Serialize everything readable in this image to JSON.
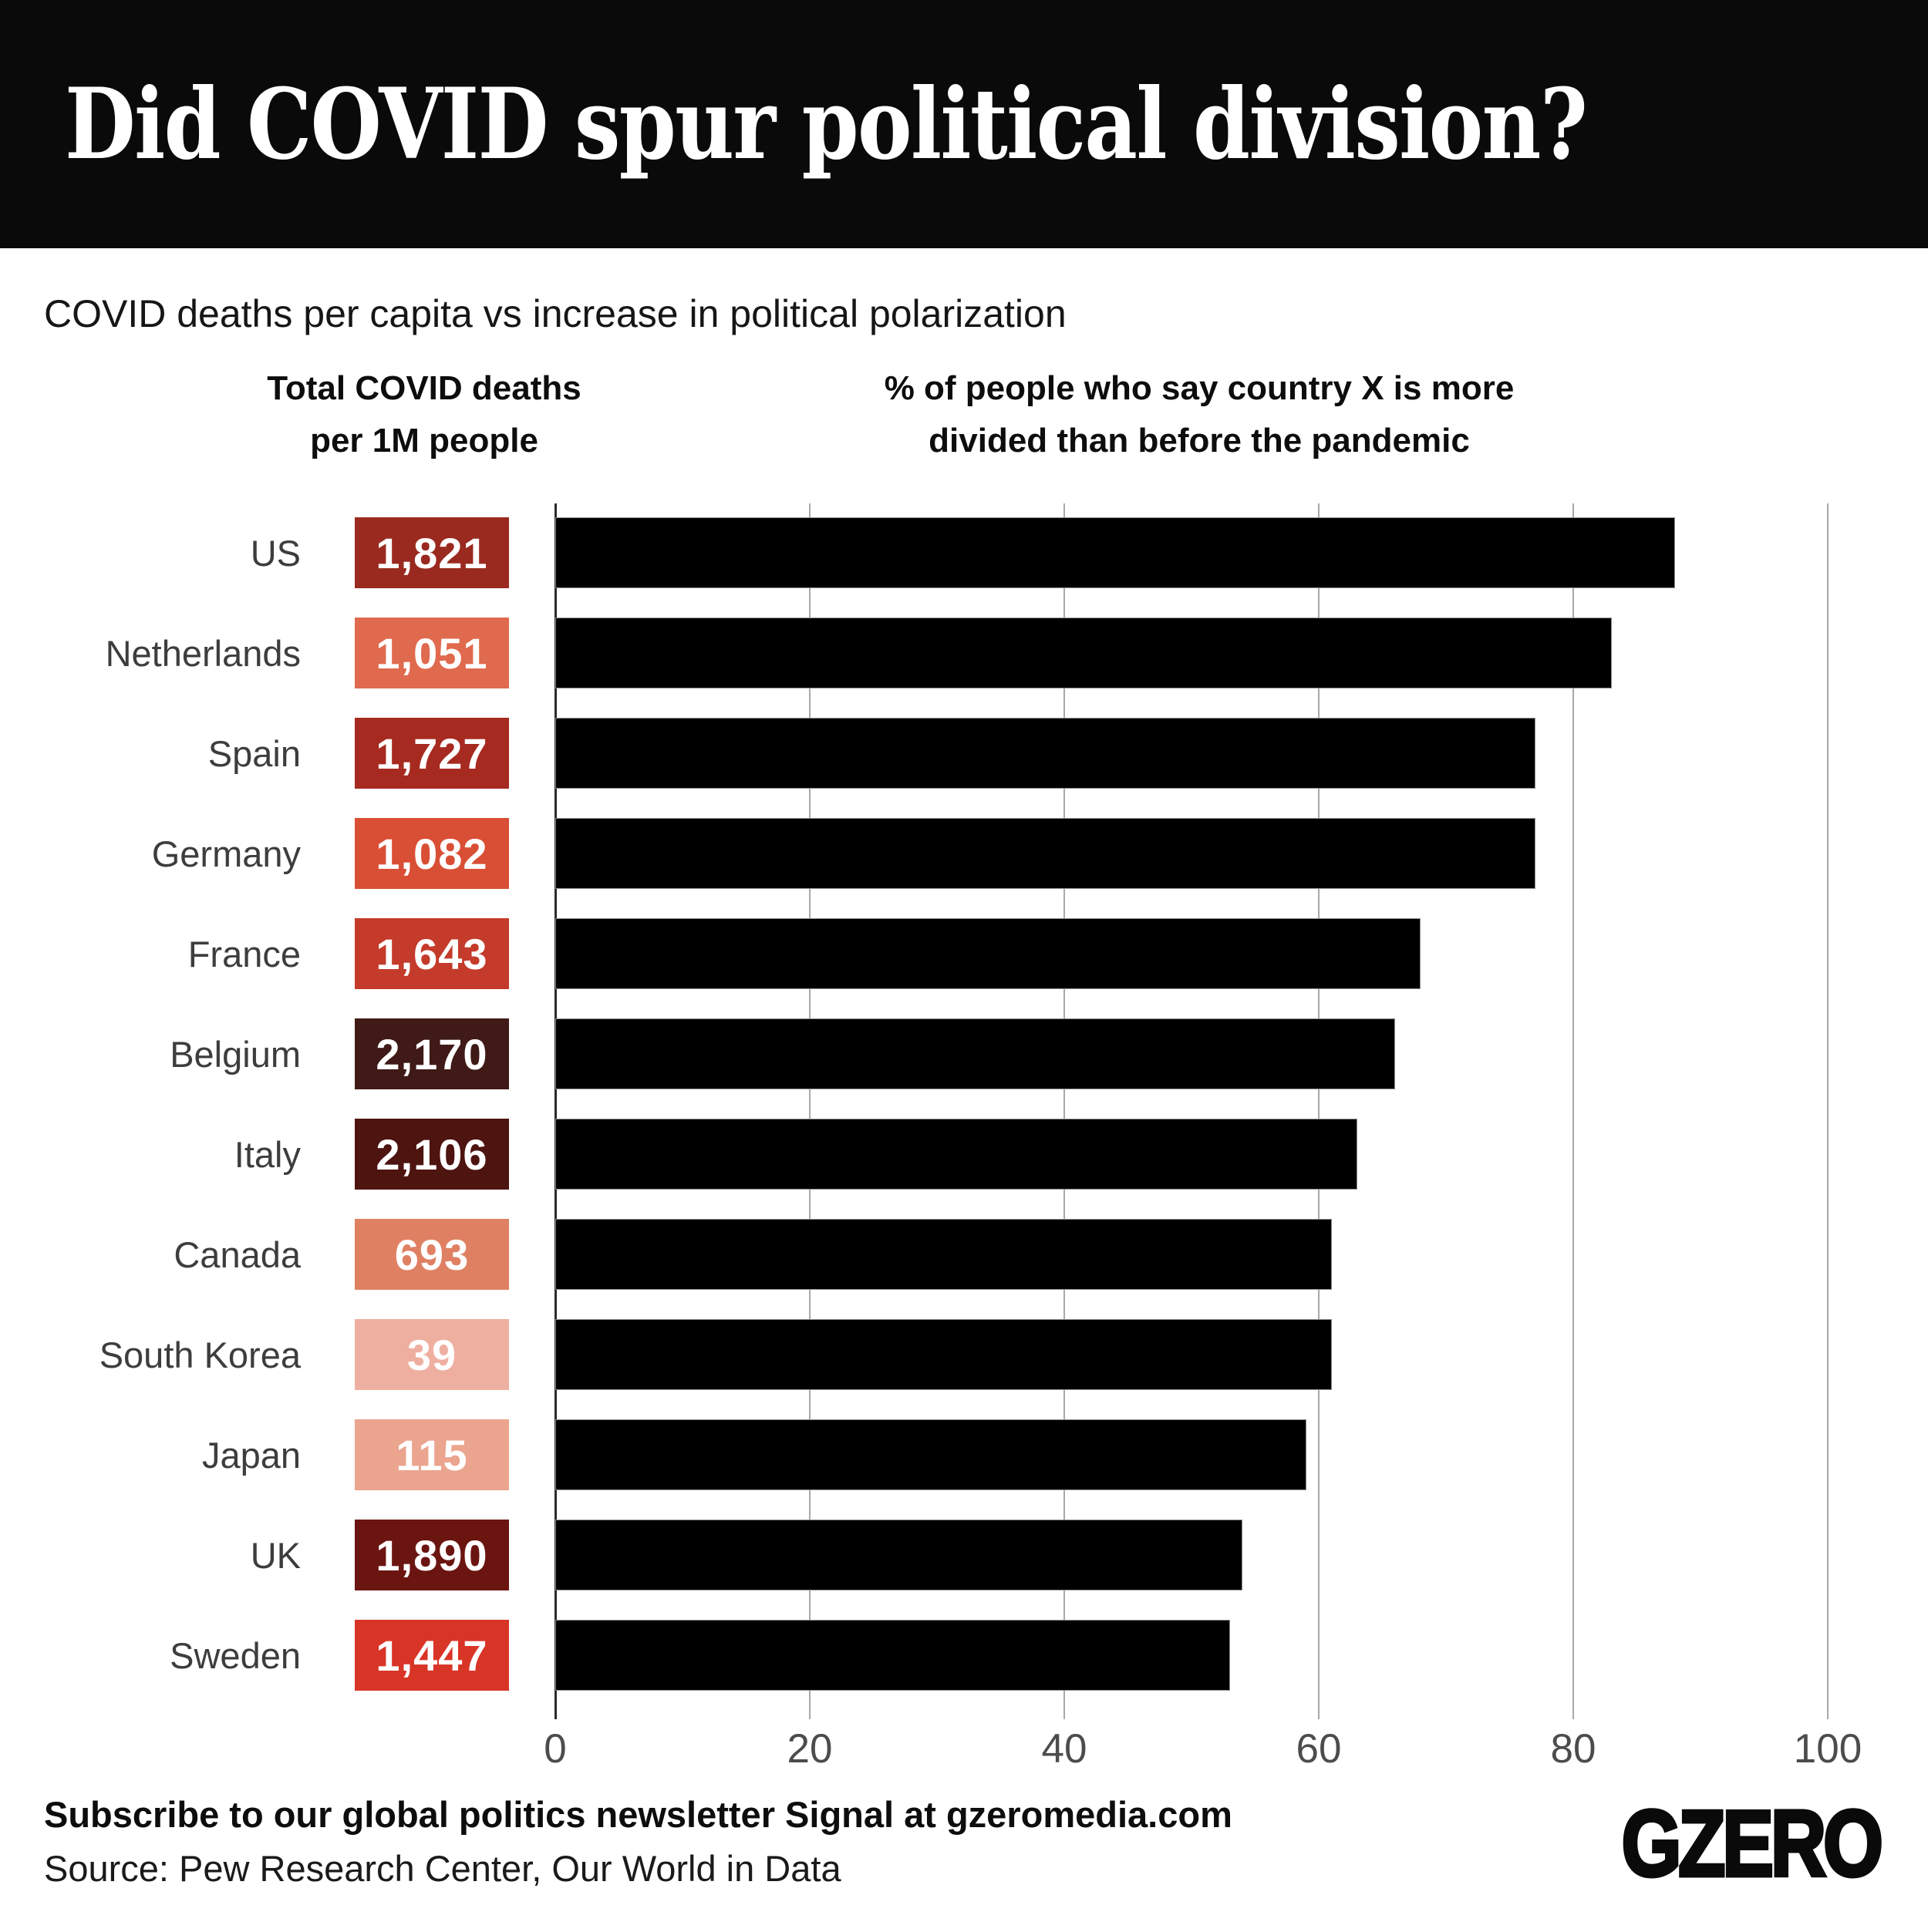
{
  "header": {
    "title": "Did COVID spur political division?"
  },
  "subtitle": "COVID deaths per capita vs increase in political polarization",
  "columns": {
    "deaths_header_line1": "Total COVID deaths",
    "deaths_header_line2": "per 1M people",
    "pct_header_line1": "% of people who say country X is more",
    "pct_header_line2": "divided than before the pandemic"
  },
  "chart_data": {
    "type": "bar",
    "orientation": "horizontal",
    "title": "COVID deaths per capita vs increase in political polarization",
    "categories": [
      "US",
      "Netherlands",
      "Spain",
      "Germany",
      "France",
      "Belgium",
      "Italy",
      "Canada",
      "South Korea",
      "Japan",
      "UK",
      "Sweden"
    ],
    "series": [
      {
        "name": "Total COVID deaths per 1M people",
        "values": [
          1821,
          1051,
          1727,
          1082,
          1643,
          2170,
          2106,
          693,
          39,
          115,
          1890,
          1447
        ],
        "value_labels": [
          "1,821",
          "1,051",
          "1,727",
          "1,082",
          "1,643",
          "2,170",
          "2,106",
          "693",
          "39",
          "115",
          "1,890",
          "1,447"
        ],
        "box_colors": [
          "#9a2a20",
          "#e06a4e",
          "#a62a20",
          "#d94f35",
          "#c43b2b",
          "#3f1a16",
          "#4d1410",
          "#e08063",
          "#efafa0",
          "#eba48e",
          "#6b1511",
          "#d93527"
        ]
      },
      {
        "name": "% of people who say country X is more divided than before the pandemic",
        "values": [
          88,
          83,
          77,
          77,
          68,
          66,
          63,
          61,
          61,
          59,
          54,
          53
        ],
        "bar_color": "#000000"
      }
    ],
    "xlim": [
      0,
      100
    ],
    "xticks": [
      0,
      20,
      40,
      60,
      80,
      100
    ],
    "grid": true,
    "legend": false,
    "colors": {
      "gridline": "#a8a8a8",
      "zero_line": "#2a2a2a",
      "country_label": "#3d3d3d",
      "tick_label": "#4c4c4c",
      "header_bg": "#0a0a0a"
    }
  },
  "footer": {
    "subscribe": "Subscribe to our global politics newsletter Signal at gzeromedia.com",
    "source": "Source: Pew Research Center, Our World in Data",
    "logo": "GZERO"
  }
}
